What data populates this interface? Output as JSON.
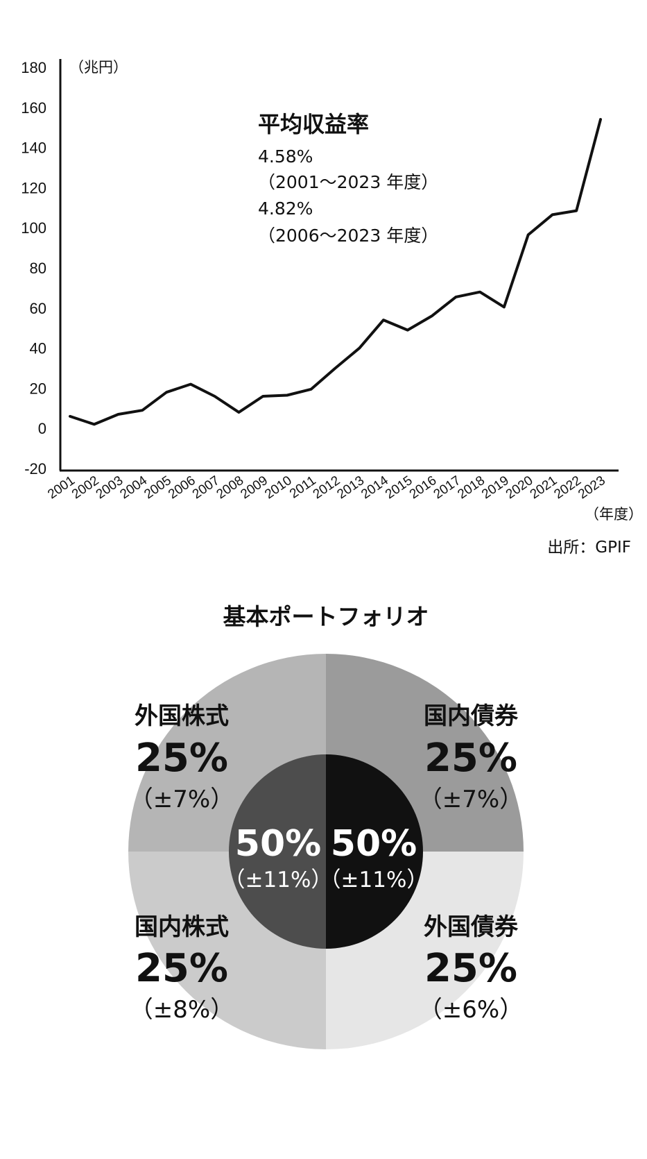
{
  "chart_data": [
    {
      "type": "line",
      "title": "",
      "ylabel_unit": "（兆円）",
      "xlabel_unit": "（年度）",
      "ylim": [
        -20,
        180
      ],
      "yticks": [
        -20,
        0,
        20,
        40,
        60,
        80,
        100,
        120,
        140,
        160,
        180
      ],
      "grid": false,
      "x": [
        "2001",
        "2002",
        "2003",
        "2004",
        "2005",
        "2006",
        "2007",
        "2008",
        "2009",
        "2010",
        "2011",
        "2012",
        "2013",
        "2014",
        "2015",
        "2016",
        "2017",
        "2018",
        "2019",
        "2020",
        "2021",
        "2022",
        "2023"
      ],
      "series": [
        {
          "values": [
            6,
            2,
            7,
            9,
            18,
            22,
            16,
            8,
            16,
            16.5,
            19.5,
            30,
            40,
            54,
            49,
            56,
            65.5,
            68,
            60.5,
            96.5,
            106.5,
            108.5,
            154
          ]
        }
      ],
      "annotation": {
        "title": "平均収益率",
        "lines": [
          "4.58%",
          "（2001～2023 年度）",
          "4.82%",
          "（2006～2023 年度）"
        ]
      },
      "source": "出所：GPIF"
    },
    {
      "type": "pie",
      "title": "基本ポートフォリオ",
      "outer_slices": [
        {
          "label": "国内債券",
          "value": 25,
          "pct": "25%",
          "range": "（±7%）",
          "color": "#9b9b9b"
        },
        {
          "label": "外国債券",
          "value": 25,
          "pct": "25%",
          "range": "（±6%）",
          "color": "#e6e6e6"
        },
        {
          "label": "国内株式",
          "value": 25,
          "pct": "25%",
          "range": "（±8%）",
          "color": "#cbcbcb"
        },
        {
          "label": "外国株式",
          "value": 25,
          "pct": "25%",
          "range": "（±7%）",
          "color": "#b5b5b5"
        }
      ],
      "inner_slices": [
        {
          "value": 50,
          "pct": "50%",
          "range": "（±11%）",
          "color": "#111111"
        },
        {
          "value": 50,
          "pct": "50%",
          "range": "（±11%）",
          "color": "#4d4d4d"
        }
      ]
    }
  ]
}
